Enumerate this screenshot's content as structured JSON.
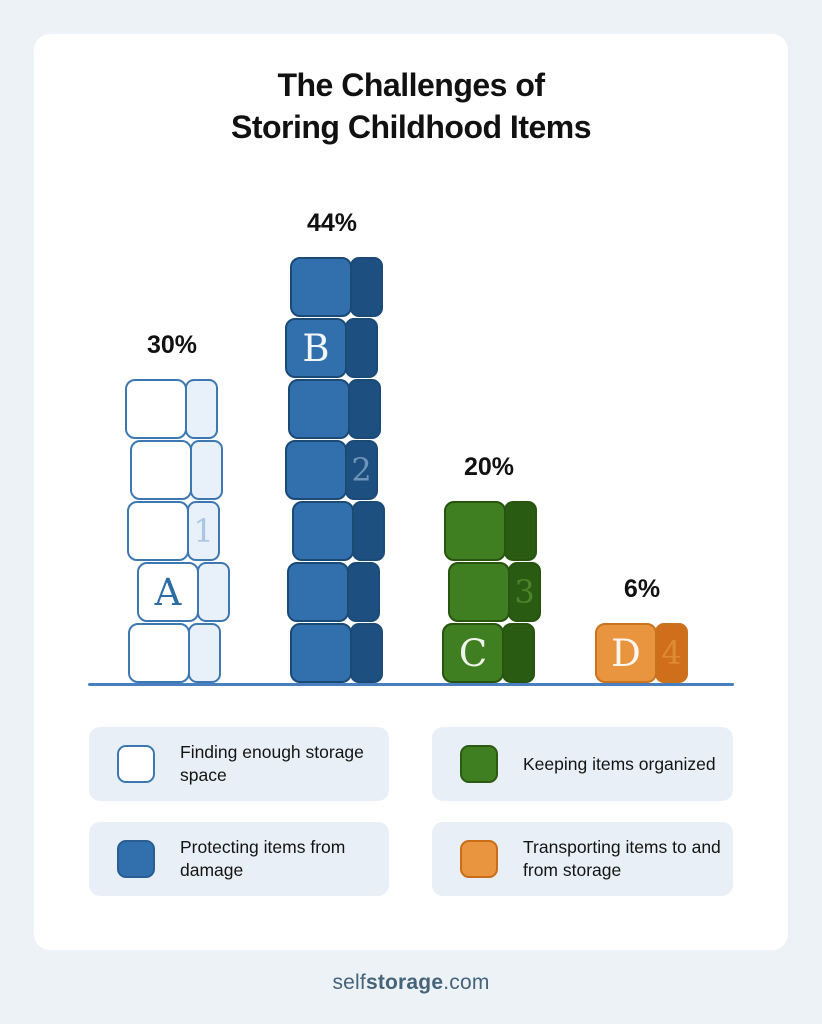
{
  "title": {
    "line1": "The Challenges of",
    "line2": "Storing Childhood Items"
  },
  "chart_data": {
    "type": "bar",
    "title": "The Challenges of Storing Childhood Items",
    "unit": "%",
    "categories": [
      "Finding enough storage space",
      "Protecting items from damage",
      "Keeping items organized",
      "Transporting items to and from storage"
    ],
    "values": [
      30,
      44,
      20,
      6
    ],
    "ylim": [
      0,
      50
    ],
    "grid": false,
    "legend_position": "bottom",
    "bars": [
      {
        "id": "A",
        "category": "Finding enough storage space",
        "value": 30,
        "percent_label": "30%",
        "blocks": 5,
        "letter": "A",
        "digit": "1",
        "letter_block_from_bottom": 1,
        "digit_block_from_bottom": 2,
        "face_color": "#ffffff",
        "side_color": "#e8f0f9",
        "edge_color": "#3e78b3",
        "letter_color": "#2e6da4",
        "digit_color": "#a9c6e2"
      },
      {
        "id": "B",
        "category": "Protecting items from damage",
        "value": 44,
        "percent_label": "44%",
        "blocks": 7,
        "letter": "B",
        "digit": "2",
        "letter_block_from_bottom": 5,
        "digit_block_from_bottom": 3,
        "face_color": "#3270ad",
        "side_color": "#1d5080",
        "edge_color": "#1c4a77",
        "letter_color": "#f2f6fb",
        "digit_color": "#6f94ba"
      },
      {
        "id": "C",
        "category": "Keeping items organized",
        "value": 20,
        "percent_label": "20%",
        "blocks": 3,
        "letter": "C",
        "digit": "3",
        "letter_block_from_bottom": 0,
        "digit_block_from_bottom": 1,
        "face_color": "#3f7e21",
        "side_color": "#2a5b13",
        "edge_color": "#27540f",
        "letter_color": "#eef5ea",
        "digit_color": "#4a8427"
      },
      {
        "id": "D",
        "category": "Transporting items to and from storage",
        "value": 6,
        "percent_label": "6%",
        "blocks": 1,
        "letter": "D",
        "digit": "4",
        "letter_block_from_bottom": 0,
        "digit_block_from_bottom": 0,
        "face_color": "#e9953f",
        "side_color": "#cf6f1c",
        "edge_color": "#c9731f",
        "letter_color": "#fdf6ee",
        "digit_color": "#e08a33"
      }
    ]
  },
  "legend": {
    "items": [
      {
        "name": "finding-enough-storage-space",
        "label": "Finding enough storage space",
        "swatch_fill": "#ffffff",
        "swatch_border": "#3e78b3"
      },
      {
        "name": "keeping-items-organized",
        "label": "Keeping items organized",
        "swatch_fill": "#3f7e21",
        "swatch_border": "#2a5b13"
      },
      {
        "name": "protecting-items-from-damage",
        "label": "Protecting items from damage",
        "swatch_fill": "#3270ad",
        "swatch_border": "#2a5d92"
      },
      {
        "name": "transporting-items-to-and-from-storage",
        "label": "Transporting items to and from storage",
        "swatch_fill": "#e9953f",
        "swatch_border": "#c96e17"
      }
    ]
  },
  "footer": {
    "brand_prefix": "self",
    "brand_bold": "storage",
    "brand_suffix": ".com"
  },
  "colors": {
    "page_bg": "#edf2f7",
    "card_bg": "#ffffff",
    "legend_card_bg": "#e9eff6",
    "baseline": "#4a7fbf",
    "text": "#111111",
    "footer_text": "#456379"
  }
}
